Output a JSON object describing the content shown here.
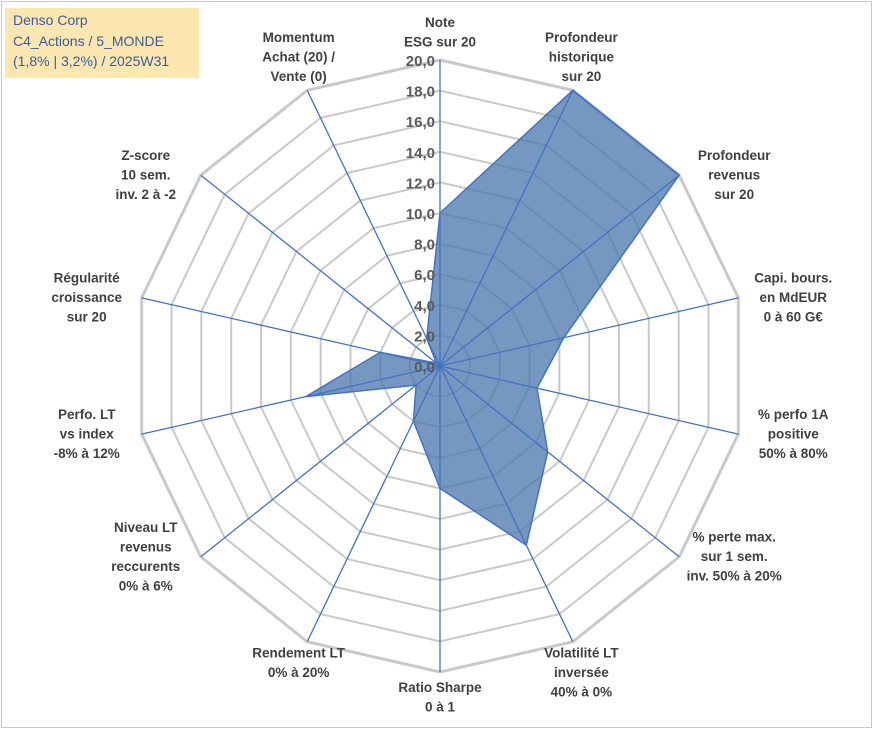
{
  "title_box": {
    "line1": "Denso Corp",
    "line2": "C4_Actions / 5_MONDE",
    "line3": "(1,8% | 3,2%) / 2025W31"
  },
  "chart_data": {
    "type": "radar",
    "rmin": 0,
    "rmax": 20,
    "tick_step": 2,
    "tick_labels": [
      "0,0",
      "2,0",
      "4,0",
      "6,0",
      "8,0",
      "10,0",
      "12,0",
      "14,0",
      "16,0",
      "18,0",
      "20,0"
    ],
    "grid": true,
    "legend": "none",
    "fill_color": "#4f7aad",
    "line_color": "#4472c4",
    "grid_color": "#c9c9c9",
    "axes": [
      {
        "label": [
          "Note",
          "ESG sur 20"
        ],
        "value": 10.0
      },
      {
        "label": [
          "Profondeur",
          "historique",
          "sur 20"
        ],
        "value": 20.0
      },
      {
        "label": [
          "Profondeur",
          "revenus",
          "sur 20"
        ],
        "value": 20.0
      },
      {
        "label": [
          "Capi. bours.",
          "en MdEUR",
          "0 à 60 G€"
        ],
        "value": 8.3
      },
      {
        "label": [
          "% perfo 1A",
          "positive",
          "50% à 80%"
        ],
        "value": 6.5
      },
      {
        "label": [
          "% perte max.",
          "sur 1 sem.",
          "inv. 50% à 20%"
        ],
        "value": 9.0
      },
      {
        "label": [
          "Volatilité LT",
          "inversée",
          "40% à 0%"
        ],
        "value": 13.0
      },
      {
        "label": [
          "Ratio Sharpe",
          "0 à 1"
        ],
        "value": 8.0
      },
      {
        "label": [
          "Rendement LT",
          "0% à 20%"
        ],
        "value": 4.0
      },
      {
        "label": [
          "Niveau LT",
          "revenus",
          "reccurents",
          "0% à 6%"
        ],
        "value": 2.0
      },
      {
        "label": [
          "Perfo. LT",
          "vs index",
          "-8% à 12%"
        ],
        "value": 9.0
      },
      {
        "label": [
          "Régularité",
          "croissance",
          "sur 20"
        ],
        "value": 4.0
      },
      {
        "label": [
          "Z-score",
          "10 sem.",
          "inv. 2 à -2"
        ],
        "value": 0.3
      },
      {
        "label": [
          "Momentum",
          "Achat (20) /",
          "Vente (0)"
        ],
        "value": 2.0
      }
    ]
  }
}
